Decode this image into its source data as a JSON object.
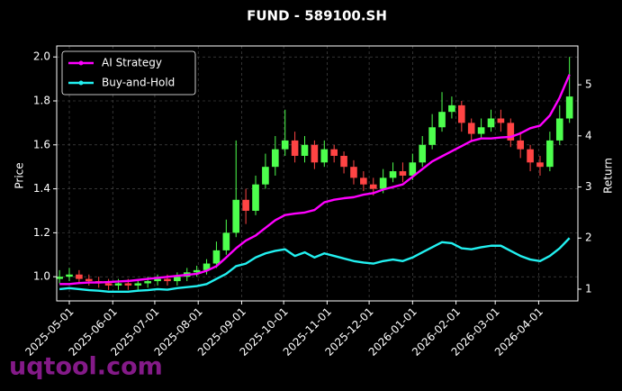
{
  "chart_data": {
    "type": "candlestick",
    "title": "FUND - 589100.SH",
    "ylabel": "Price",
    "y2label": "Return",
    "watermark": "uqtool.com",
    "x": [
      "2025-04-24",
      "2025-05-01",
      "2025-05-08",
      "2025-05-15",
      "2025-05-22",
      "2025-05-29",
      "2025-06-05",
      "2025-06-12",
      "2025-06-19",
      "2025-06-26",
      "2025-07-03",
      "2025-07-10",
      "2025-07-17",
      "2025-07-24",
      "2025-07-31",
      "2025-08-07",
      "2025-08-14",
      "2025-08-21",
      "2025-08-28",
      "2025-09-04",
      "2025-09-11",
      "2025-09-18",
      "2025-09-25",
      "2025-10-02",
      "2025-10-09",
      "2025-10-16",
      "2025-10-23",
      "2025-10-30",
      "2025-11-06",
      "2025-11-13",
      "2025-11-20",
      "2025-11-27",
      "2025-12-04",
      "2025-12-11",
      "2025-12-18",
      "2025-12-25",
      "2026-01-01",
      "2026-01-08",
      "2026-01-15",
      "2026-01-22",
      "2026-01-29",
      "2026-02-05",
      "2026-02-12",
      "2026-02-19",
      "2026-02-26",
      "2026-03-05",
      "2026-03-12",
      "2026-03-19",
      "2026-03-26",
      "2026-04-02",
      "2026-04-09",
      "2026-04-16",
      "2026-04-23"
    ],
    "open": [
      0.99,
      1.0,
      1.01,
      0.99,
      0.98,
      0.97,
      0.96,
      0.97,
      0.96,
      0.97,
      0.98,
      0.99,
      0.98,
      1.0,
      1.02,
      1.03,
      1.06,
      1.12,
      1.2,
      1.35,
      1.3,
      1.42,
      1.5,
      1.58,
      1.62,
      1.55,
      1.6,
      1.52,
      1.58,
      1.55,
      1.5,
      1.45,
      1.42,
      1.4,
      1.45,
      1.48,
      1.46,
      1.52,
      1.6,
      1.68,
      1.75,
      1.78,
      1.7,
      1.65,
      1.68,
      1.72,
      1.7,
      1.62,
      1.58,
      1.52,
      1.5,
      1.62,
      1.72
    ],
    "high": [
      1.03,
      1.04,
      1.03,
      1.01,
      1.0,
      0.99,
      0.99,
      0.99,
      0.99,
      1.0,
      1.01,
      1.01,
      1.02,
      1.04,
      1.05,
      1.08,
      1.16,
      1.26,
      1.62,
      1.4,
      1.46,
      1.56,
      1.64,
      1.76,
      1.66,
      1.64,
      1.62,
      1.62,
      1.6,
      1.57,
      1.53,
      1.48,
      1.45,
      1.49,
      1.52,
      1.52,
      1.56,
      1.64,
      1.74,
      1.84,
      1.82,
      1.8,
      1.72,
      1.72,
      1.76,
      1.76,
      1.72,
      1.66,
      1.6,
      1.55,
      1.66,
      1.78,
      2.0
    ],
    "low": [
      0.97,
      0.98,
      0.97,
      0.96,
      0.95,
      0.94,
      0.94,
      0.94,
      0.94,
      0.95,
      0.96,
      0.96,
      0.96,
      0.98,
      1.0,
      1.01,
      1.04,
      1.1,
      1.18,
      1.24,
      1.28,
      1.4,
      1.46,
      1.55,
      1.52,
      1.52,
      1.49,
      1.5,
      1.52,
      1.47,
      1.42,
      1.39,
      1.37,
      1.38,
      1.43,
      1.43,
      1.44,
      1.5,
      1.58,
      1.66,
      1.72,
      1.66,
      1.62,
      1.63,
      1.66,
      1.66,
      1.59,
      1.54,
      1.48,
      1.46,
      1.48,
      1.6,
      1.7
    ],
    "close": [
      1.0,
      1.01,
      0.99,
      0.98,
      0.97,
      0.96,
      0.97,
      0.96,
      0.97,
      0.98,
      0.99,
      0.98,
      1.0,
      1.02,
      1.03,
      1.06,
      1.12,
      1.2,
      1.35,
      1.3,
      1.42,
      1.5,
      1.58,
      1.62,
      1.55,
      1.6,
      1.52,
      1.58,
      1.55,
      1.5,
      1.45,
      1.42,
      1.4,
      1.45,
      1.48,
      1.46,
      1.52,
      1.6,
      1.68,
      1.75,
      1.78,
      1.7,
      1.65,
      1.68,
      1.72,
      1.7,
      1.62,
      1.58,
      1.52,
      1.5,
      1.62,
      1.72,
      1.82
    ],
    "up_color": "#4dff4d",
    "down_color": "#ff4444",
    "series": [
      {
        "name": "AI Strategy",
        "color": "#ff00ff",
        "axis": "y2",
        "values": [
          1.1,
          1.1,
          1.12,
          1.13,
          1.13,
          1.14,
          1.15,
          1.16,
          1.18,
          1.2,
          1.22,
          1.24,
          1.26,
          1.28,
          1.3,
          1.36,
          1.45,
          1.62,
          1.8,
          1.95,
          2.05,
          2.2,
          2.35,
          2.45,
          2.48,
          2.5,
          2.55,
          2.7,
          2.75,
          2.78,
          2.8,
          2.85,
          2.88,
          2.95,
          3.0,
          3.05,
          3.2,
          3.35,
          3.5,
          3.6,
          3.7,
          3.8,
          3.9,
          3.95,
          3.95,
          3.97,
          3.98,
          4.05,
          4.15,
          4.2,
          4.4,
          4.75,
          5.2
        ]
      },
      {
        "name": "Buy-and-Hold",
        "color": "#22f0f0",
        "axis": "y2",
        "values": [
          1.0,
          1.02,
          1.0,
          0.98,
          0.97,
          0.95,
          0.95,
          0.95,
          0.97,
          0.98,
          1.0,
          0.99,
          1.02,
          1.04,
          1.06,
          1.1,
          1.2,
          1.3,
          1.45,
          1.5,
          1.62,
          1.7,
          1.75,
          1.78,
          1.65,
          1.72,
          1.62,
          1.7,
          1.65,
          1.6,
          1.55,
          1.52,
          1.5,
          1.55,
          1.58,
          1.55,
          1.62,
          1.72,
          1.82,
          1.92,
          1.9,
          1.8,
          1.78,
          1.82,
          1.85,
          1.85,
          1.75,
          1.65,
          1.58,
          1.55,
          1.65,
          1.8,
          2.0
        ]
      }
    ],
    "xlim": [
      "2025-04-22",
      "2026-04-29"
    ],
    "xticks": [
      "2025-05-01",
      "2025-06-01",
      "2025-07-01",
      "2025-08-01",
      "2025-09-01",
      "2025-10-01",
      "2025-11-01",
      "2025-12-01",
      "2026-01-01",
      "2026-02-01",
      "2026-03-01",
      "2026-04-01"
    ],
    "ylim": [
      0.89,
      2.05
    ],
    "yticks": [
      {
        "value": 1,
        "label": "1.0"
      },
      1.2,
      1.4,
      1.6,
      1.8,
      {
        "value": 2,
        "label": "2.0"
      }
    ],
    "y2lim": [
      0.77,
      5.76
    ],
    "y2ticks": [
      1,
      2,
      3,
      4,
      5
    ],
    "grid": true,
    "legend": "upper left"
  }
}
